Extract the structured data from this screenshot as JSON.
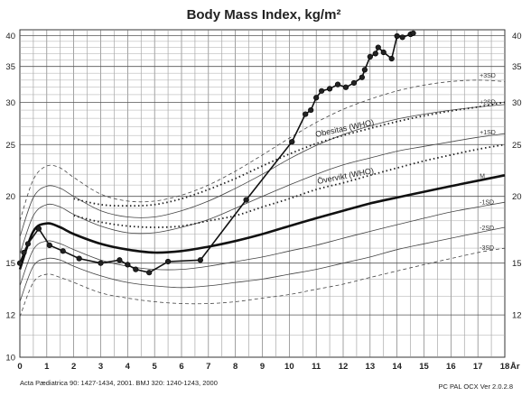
{
  "chart_data": {
    "type": "line",
    "title": "Body Mass Index, kg/m²",
    "x_unit": "År",
    "xlim": [
      0,
      18
    ],
    "ylim": [
      10,
      41
    ],
    "y_scale": "log",
    "grid": true,
    "x_ticks": [
      "0",
      "1",
      "2",
      "3",
      "4",
      "5",
      "6",
      "7",
      "8",
      "9",
      "10",
      "11",
      "12",
      "13",
      "14",
      "15",
      "16",
      "17",
      "18"
    ],
    "y_ticks_left": [
      "10",
      "12",
      "15",
      "20",
      "25",
      "30",
      "35",
      "40"
    ],
    "y_ticks_right": [
      "12",
      "15",
      "20",
      "25",
      "30",
      "35",
      "40"
    ],
    "reference_curves": [
      {
        "name": "+3SD",
        "style": "dashed",
        "x": [
          0,
          0.5,
          1,
          1.5,
          2,
          3,
          4,
          5,
          6,
          7,
          8,
          9,
          10,
          11,
          12,
          13,
          14,
          15,
          16,
          17,
          18
        ],
        "y": [
          18.0,
          21.5,
          22.8,
          22.6,
          21.7,
          20.2,
          19.6,
          19.6,
          20.1,
          21.0,
          22.3,
          23.9,
          25.7,
          27.5,
          29.1,
          30.4,
          31.5,
          32.3,
          32.8,
          33.0,
          32.8
        ]
      },
      {
        "name": "+2SD",
        "style": "solid",
        "x": [
          0,
          0.5,
          1,
          1.5,
          2,
          3,
          4,
          5,
          6,
          7,
          8,
          9,
          10,
          11,
          12,
          13,
          14,
          15,
          16,
          17,
          18
        ],
        "y": [
          16.8,
          19.9,
          20.9,
          20.7,
          20.0,
          18.8,
          18.3,
          18.3,
          18.8,
          19.6,
          20.7,
          22.0,
          23.5,
          24.9,
          26.1,
          27.1,
          27.9,
          28.5,
          29.0,
          29.4,
          29.7
        ]
      },
      {
        "name": "+1SD",
        "style": "solid",
        "x": [
          0,
          0.5,
          1,
          1.5,
          2,
          3,
          4,
          5,
          6,
          7,
          8,
          9,
          10,
          11,
          12,
          13,
          14,
          15,
          16,
          17,
          18
        ],
        "y": [
          15.6,
          18.4,
          19.3,
          19.1,
          18.5,
          17.6,
          17.1,
          17.1,
          17.5,
          18.1,
          19.0,
          20.0,
          21.0,
          22.0,
          22.9,
          23.6,
          24.3,
          24.8,
          25.3,
          25.8,
          26.2
        ]
      },
      {
        "name": "M",
        "style": "bold",
        "x": [
          0,
          0.5,
          1,
          1.5,
          2,
          3,
          4,
          5,
          6,
          7,
          8,
          9,
          10,
          11,
          12,
          13,
          14,
          15,
          16,
          17,
          18
        ],
        "y": [
          14.6,
          17.2,
          17.8,
          17.5,
          17.0,
          16.3,
          15.9,
          15.7,
          15.8,
          16.1,
          16.5,
          17.0,
          17.6,
          18.2,
          18.8,
          19.4,
          19.9,
          20.4,
          20.9,
          21.4,
          21.9
        ]
      },
      {
        "name": "-1SD",
        "style": "solid",
        "x": [
          0,
          0.5,
          1,
          1.5,
          2,
          3,
          4,
          5,
          6,
          7,
          8,
          9,
          10,
          11,
          12,
          13,
          14,
          15,
          16,
          17,
          18
        ],
        "y": [
          13.6,
          15.9,
          16.5,
          16.3,
          15.9,
          15.2,
          14.8,
          14.6,
          14.6,
          14.8,
          15.1,
          15.4,
          15.8,
          16.2,
          16.7,
          17.2,
          17.7,
          18.2,
          18.7,
          19.1,
          19.5
        ]
      },
      {
        "name": "-2SD",
        "style": "solid",
        "x": [
          0,
          0.5,
          1,
          1.5,
          2,
          3,
          4,
          5,
          6,
          7,
          8,
          9,
          10,
          11,
          12,
          13,
          14,
          15,
          16,
          17,
          18
        ],
        "y": [
          12.7,
          14.8,
          15.3,
          15.2,
          14.8,
          14.2,
          13.8,
          13.6,
          13.5,
          13.6,
          13.8,
          14.0,
          14.3,
          14.6,
          15.0,
          15.4,
          15.9,
          16.3,
          16.7,
          17.1,
          17.5
        ]
      },
      {
        "name": "-3SD",
        "style": "dashed",
        "x": [
          0,
          0.5,
          1,
          1.5,
          2,
          3,
          4,
          5,
          6,
          7,
          8,
          9,
          10,
          11,
          12,
          13,
          14,
          15,
          16,
          17,
          18
        ],
        "y": [
          11.9,
          13.8,
          14.3,
          14.1,
          13.8,
          13.2,
          12.9,
          12.7,
          12.6,
          12.6,
          12.7,
          12.9,
          13.1,
          13.4,
          13.7,
          14.1,
          14.5,
          14.9,
          15.3,
          15.7,
          16.0
        ]
      },
      {
        "name": "Obesitas (WHO)",
        "style": "dotted",
        "x": [
          2,
          3,
          4,
          5,
          6,
          7,
          8,
          9,
          10,
          11,
          12,
          13,
          14,
          15,
          16,
          17,
          18
        ],
        "y": [
          19.8,
          19.3,
          19.2,
          19.3,
          19.8,
          20.6,
          21.6,
          22.8,
          24.0,
          25.1,
          26.0,
          26.8,
          27.6,
          28.3,
          28.9,
          29.4,
          30.0
        ]
      },
      {
        "name": "Övervikt (WHO)",
        "style": "dotted",
        "x": [
          2,
          3,
          4,
          5,
          6,
          7,
          8,
          9,
          10,
          11,
          12,
          13,
          14,
          15,
          16,
          17,
          18
        ],
        "y": [
          18.4,
          17.9,
          17.6,
          17.5,
          17.6,
          18.0,
          18.4,
          19.1,
          19.8,
          20.6,
          21.2,
          21.9,
          22.6,
          23.3,
          23.9,
          24.5,
          25.0
        ]
      }
    ],
    "series": [
      {
        "name": "",
        "x": [
          0.0,
          0.15,
          0.3,
          0.7,
          1.1,
          1.6,
          2.2,
          3.0,
          3.7,
          4.0,
          4.3,
          4.8,
          5.5,
          6.7,
          8.4,
          10.1,
          10.6,
          10.8,
          11.0,
          11.2,
          11.5,
          11.8,
          12.1,
          12.4,
          12.7,
          12.8,
          13.0,
          13.2,
          13.3,
          13.5,
          13.8,
          14.0,
          14.2,
          14.5,
          14.6
        ],
        "y": [
          15.0,
          15.7,
          16.3,
          17.4,
          16.2,
          15.8,
          15.3,
          15.0,
          15.2,
          14.9,
          14.6,
          14.4,
          15.1,
          15.2,
          19.7,
          25.3,
          28.5,
          29.0,
          30.6,
          31.5,
          31.8,
          32.4,
          32.0,
          32.6,
          33.4,
          34.5,
          36.5,
          37.0,
          38.0,
          37.2,
          36.2,
          39.9,
          39.7,
          40.2,
          40.4
        ]
      }
    ],
    "curve_labels": [
      "+3SD",
      "+2SD",
      "+1SD",
      "M",
      "-1SD",
      "-2SD",
      "-3SD"
    ],
    "annotations": [
      "Obesitas (WHO)",
      "Övervikt (WHO)"
    ],
    "footer_left": "Acta Pædiatrica 90: 1427-1434, 2001. BMJ 320: 1240-1243, 2000",
    "footer_right": "PC PAL OCX Ver 2.0.2.8"
  }
}
